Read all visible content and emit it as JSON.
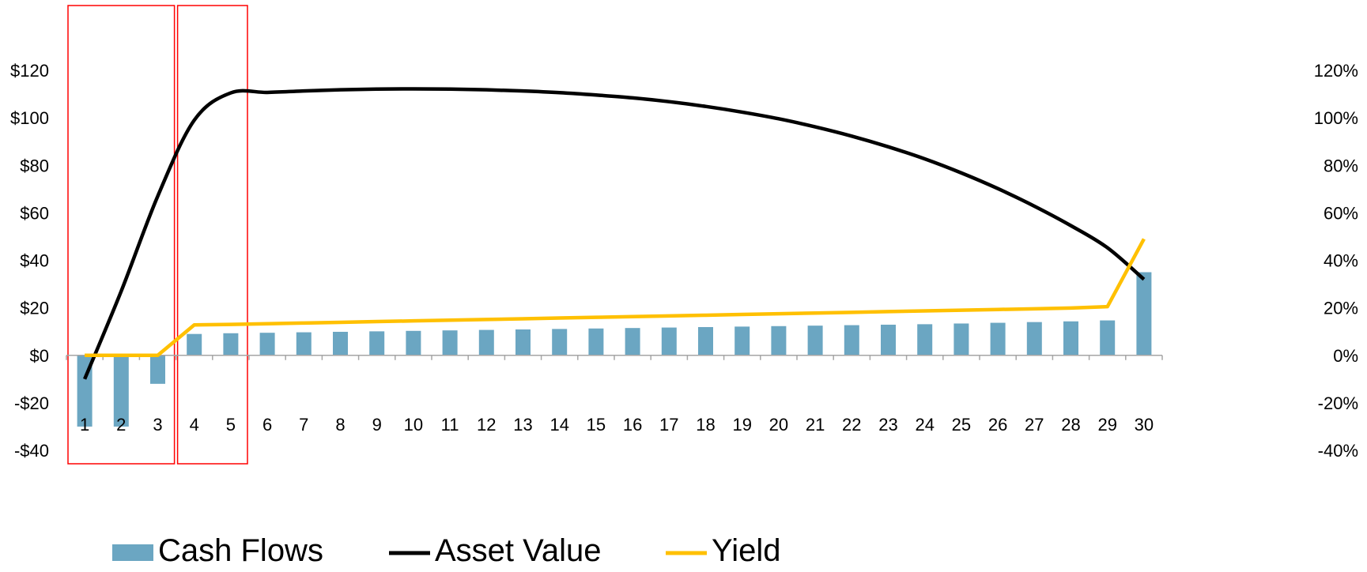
{
  "chart_data": {
    "type": "bar+line",
    "categories": [
      "1",
      "2",
      "3",
      "4",
      "5",
      "6",
      "7",
      "8",
      "9",
      "10",
      "11",
      "12",
      "13",
      "14",
      "15",
      "16",
      "17",
      "18",
      "19",
      "20",
      "21",
      "22",
      "23",
      "24",
      "25",
      "26",
      "27",
      "28",
      "29",
      "30"
    ],
    "series": [
      {
        "name": "Cash Flows",
        "type": "bar",
        "axis": "left",
        "color": "#6ba6c2",
        "values": [
          -30,
          -30,
          -12,
          9,
          9.3,
          9.5,
          9.7,
          9.9,
          10.1,
          10.3,
          10.5,
          10.7,
          10.9,
          11.1,
          11.3,
          11.5,
          11.7,
          11.9,
          12.1,
          12.3,
          12.5,
          12.7,
          12.9,
          13.1,
          13.4,
          13.7,
          14.0,
          14.3,
          14.7,
          35
        ]
      },
      {
        "name": "Asset Value",
        "type": "line",
        "axis": "left",
        "color": "#000000",
        "values": [
          -10,
          27,
          67,
          99,
          110.5,
          110.7,
          111.3,
          111.8,
          112.1,
          112.2,
          112.1,
          111.8,
          111.3,
          110.6,
          109.6,
          108.4,
          106.8,
          104.8,
          102.4,
          99.6,
          96.2,
          92.3,
          87.8,
          82.7,
          76.8,
          70.2,
          62.8,
          54.6,
          45.3,
          32
        ]
      },
      {
        "name": "Yield",
        "type": "line",
        "axis": "right",
        "color": "#ffc000",
        "values": [
          0,
          0,
          0,
          12.8,
          13.0,
          13.3,
          13.6,
          13.9,
          14.2,
          14.5,
          14.8,
          15.1,
          15.4,
          15.7,
          16.0,
          16.3,
          16.6,
          16.9,
          17.2,
          17.5,
          17.8,
          18.1,
          18.4,
          18.7,
          19.0,
          19.3,
          19.6,
          19.9,
          20.5,
          49
        ]
      }
    ],
    "y_left": {
      "ylim": [
        -40,
        120
      ],
      "ticks": [
        120,
        100,
        80,
        60,
        40,
        20,
        0,
        -20,
        -40
      ],
      "tick_labels": [
        "$120",
        "$100",
        "$80",
        "$60",
        "$40",
        "$20",
        "$0",
        "-$20",
        "-$40"
      ]
    },
    "y_right": {
      "ylim": [
        -40,
        120
      ],
      "ticks": [
        120,
        100,
        80,
        60,
        40,
        20,
        0,
        -20,
        -40
      ],
      "tick_labels": [
        "120%",
        "100%",
        "80%",
        "60%",
        "40%",
        "20%",
        "0%",
        "-20%",
        "-40%"
      ]
    },
    "highlight_boxes": [
      {
        "from_category": "1",
        "to_category": "3",
        "color": "#ff0000"
      },
      {
        "from_category": "4",
        "to_category": "5",
        "color": "#ff0000"
      }
    ],
    "legend": {
      "position": "bottom-left",
      "entries": [
        "Cash Flows",
        "Asset Value",
        "Yield"
      ]
    },
    "grid": false
  }
}
